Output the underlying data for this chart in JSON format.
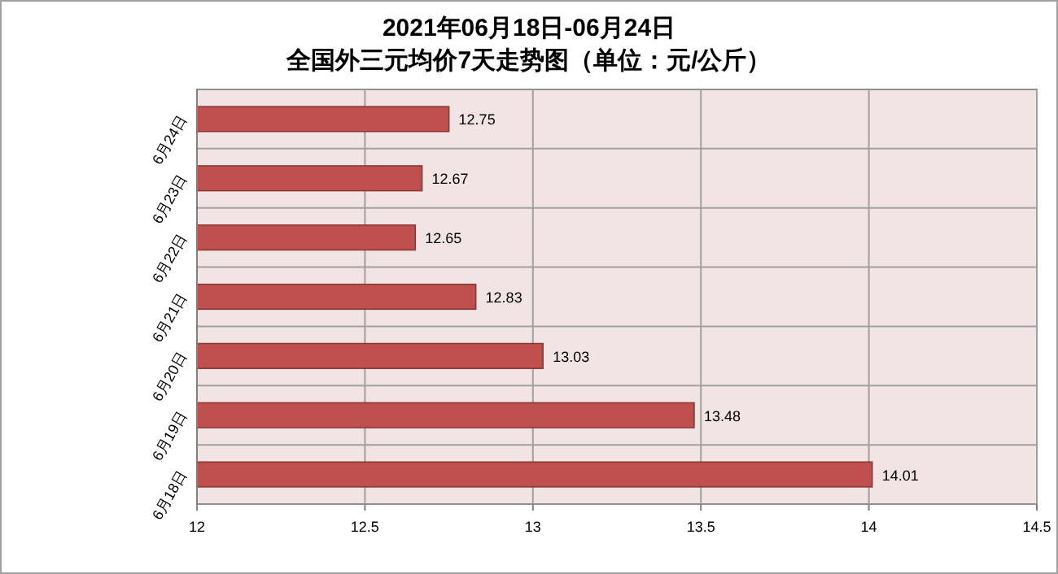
{
  "chart_data": {
    "type": "bar",
    "orientation": "horizontal",
    "title": "2021年06月18日-06月24日",
    "subtitle": "全国外三元均价7天走势图（单位：元/公斤）",
    "categories": [
      "6月24日",
      "6月23日",
      "6月22日",
      "6月21日",
      "6月20日",
      "6月19日",
      "6月18日"
    ],
    "values": [
      12.75,
      12.67,
      12.65,
      12.83,
      13.03,
      13.48,
      14.01
    ],
    "color": "#c0504d",
    "xlim": [
      12,
      14.5
    ],
    "xticks": [
      12,
      12.5,
      13,
      13.5,
      14,
      14.5
    ],
    "grid": true,
    "data_labels": true
  }
}
